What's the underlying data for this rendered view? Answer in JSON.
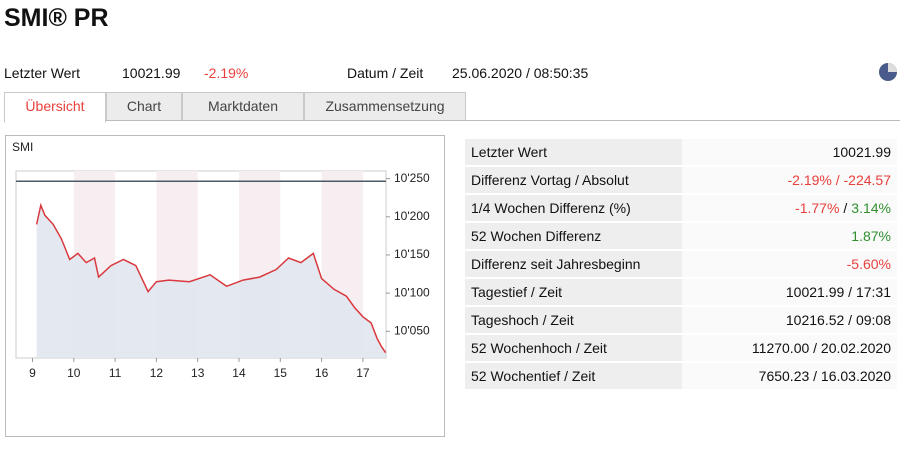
{
  "header": {
    "title": "SMI® PR"
  },
  "summary": {
    "last_label": "Letzter Wert",
    "last_value": "10021.99",
    "change": "-2.19%",
    "datetime_label": "Datum / Zeit",
    "datetime": "25.06.2020 / 08:50:35"
  },
  "tabs": [
    "Übersicht",
    "Chart",
    "Marktdaten",
    "Zusammensetzung"
  ],
  "chart_data": {
    "type": "line",
    "title": "SMI",
    "x": [
      9.1,
      9.2,
      9.3,
      9.5,
      9.7,
      9.9,
      10.1,
      10.3,
      10.5,
      10.6,
      10.9,
      11.2,
      11.5,
      11.8,
      12.0,
      12.3,
      12.8,
      13.3,
      13.7,
      14.1,
      14.5,
      14.9,
      15.2,
      15.5,
      15.8,
      16.0,
      16.3,
      16.6,
      16.8,
      17.0,
      17.2,
      17.35,
      17.45,
      17.55
    ],
    "series": [
      {
        "color": "#d9393e",
        "values": [
          10190,
          10215,
          10202,
          10190,
          10171,
          10144,
          10152,
          10140,
          10146,
          10121,
          10136,
          10144,
          10136,
          10102,
          10115,
          10117,
          10115,
          10124,
          10109,
          10117,
          10121,
          10131,
          10146,
          10140,
          10152,
          10119,
          10105,
          10096,
          10081,
          10069,
          10061,
          10040,
          10030,
          10022
        ]
      }
    ],
    "reference_line": 10246.56,
    "xlim": [
      8.6,
      17.56
    ],
    "xticks": [
      9,
      10,
      11,
      12,
      13,
      14,
      15,
      16,
      17
    ],
    "ylim": [
      10015,
      10260
    ],
    "yticks": [
      {
        "value": 10050,
        "label": "10'050"
      },
      {
        "value": 10100,
        "label": "10'100"
      },
      {
        "value": 10150,
        "label": "10'150"
      },
      {
        "value": 10200,
        "label": "10'200"
      },
      {
        "value": 10250,
        "label": "10'250"
      }
    ]
  },
  "table": {
    "rows": [
      {
        "label": "Letzter Wert",
        "parts": [
          "10021.99"
        ],
        "tones": [
          "plain"
        ]
      },
      {
        "label": "Differenz Vortag / Absolut",
        "parts": [
          "-2.19% / -224.57"
        ],
        "tones": [
          "neg"
        ]
      },
      {
        "label": "1/4 Wochen Differenz (%)",
        "parts": [
          "-1.77%",
          "/",
          "3.14%"
        ],
        "tones": [
          "neg",
          "plain",
          "pos"
        ]
      },
      {
        "label": "52 Wochen Differenz",
        "parts": [
          "1.87%"
        ],
        "tones": [
          "pos"
        ]
      },
      {
        "label": "Differenz seit Jahresbeginn",
        "parts": [
          "-5.60%"
        ],
        "tones": [
          "neg"
        ]
      },
      {
        "label": "Tagestief / Zeit",
        "parts": [
          "10021.99 / 17:31"
        ],
        "tones": [
          "plain"
        ]
      },
      {
        "label": "Tageshoch / Zeit",
        "parts": [
          "10216.52 / 09:08"
        ],
        "tones": [
          "plain"
        ]
      },
      {
        "label": "52 Wochenhoch / Zeit",
        "parts": [
          "11270.00 / 20.02.2020"
        ],
        "tones": [
          "plain"
        ]
      },
      {
        "label": "52 Wochentief / Zeit",
        "parts": [
          "7650.23 / 16.03.2020"
        ],
        "tones": [
          "plain"
        ]
      }
    ]
  }
}
